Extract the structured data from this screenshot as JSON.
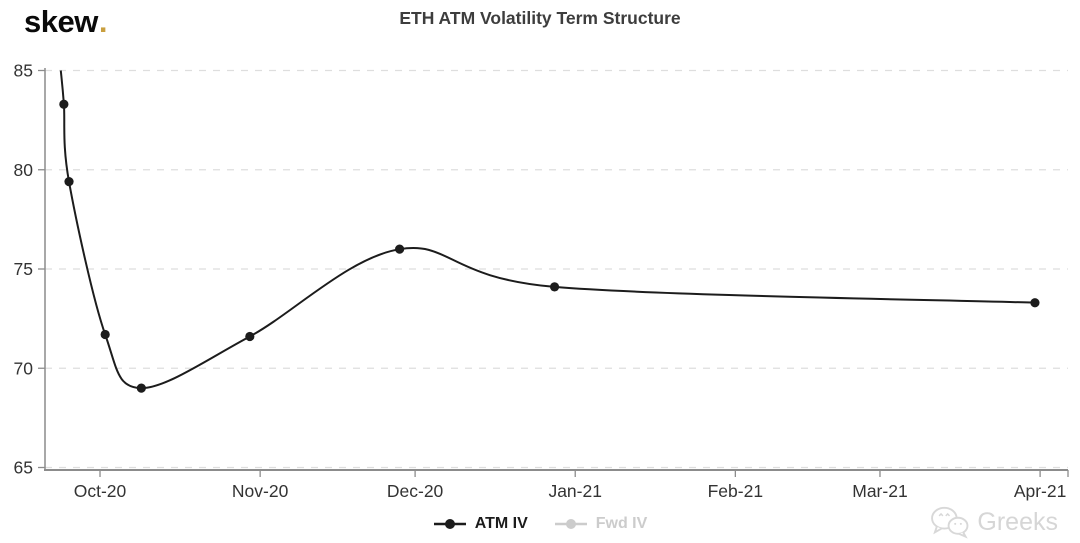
{
  "header": {
    "logo_text": "skew",
    "logo_dot": ".",
    "title": "ETH ATM Volatility Term Structure"
  },
  "legend": {
    "items": [
      {
        "label": "ATM IV",
        "color": "#1c1c1c",
        "active": true
      },
      {
        "label": "Fwd IV",
        "color": "#cccccc",
        "active": false
      }
    ]
  },
  "watermark": {
    "text": "Greeks"
  },
  "chart_data": {
    "type": "line",
    "title": "ETH ATM Volatility Term Structure",
    "ylabel": "",
    "xlabel": "",
    "ylim": [
      65,
      85
    ],
    "y_ticks": [
      65,
      70,
      75,
      80,
      85
    ],
    "x_unit": "days from 2020-10-01",
    "x_ticks": [
      {
        "label": "Oct-20",
        "t": 0
      },
      {
        "label": "Nov-20",
        "t": 31
      },
      {
        "label": "Dec-20",
        "t": 61
      },
      {
        "label": "Jan-21",
        "t": 92
      },
      {
        "label": "Feb-21",
        "t": 123
      },
      {
        "label": "Mar-21",
        "t": 151
      },
      {
        "label": "Apr-21",
        "t": 182
      }
    ],
    "grid": "horizontal-dashed",
    "legend_position": "bottom-center",
    "colors": {
      "grid": "#dedede",
      "axis": "#8c8c8c",
      "tick_label": "#333333"
    },
    "series": [
      {
        "name": "ATM IV",
        "color": "#1c1c1c",
        "visible": true,
        "points": [
          {
            "t": -7.6,
            "y": 85.0,
            "edge_clip": true
          },
          {
            "t": -7,
            "y": 83.3
          },
          {
            "t": -6,
            "y": 79.4
          },
          {
            "t": 1,
            "y": 71.7
          },
          {
            "t": 8,
            "y": 69.0
          },
          {
            "t": 29,
            "y": 71.6
          },
          {
            "t": 58,
            "y": 76.0
          },
          {
            "t": 88,
            "y": 74.1
          },
          {
            "t": 181,
            "y": 73.3
          }
        ]
      },
      {
        "name": "Fwd IV",
        "color": "#cccccc",
        "visible": false,
        "points": []
      }
    ]
  }
}
